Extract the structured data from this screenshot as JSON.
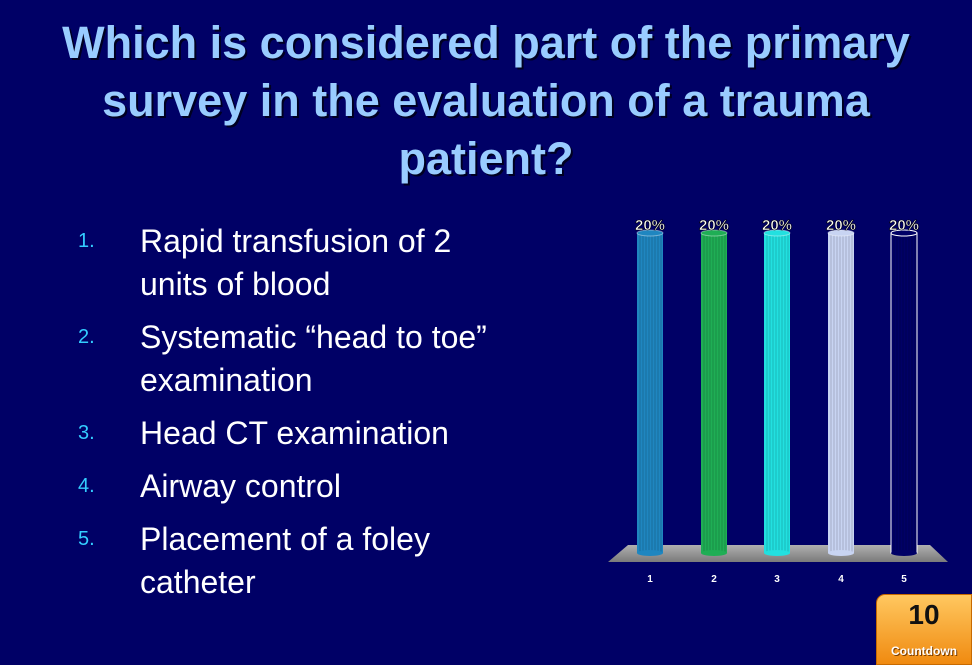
{
  "question": "Which is considered part of the primary survey in the evaluation of a trauma patient?",
  "options": [
    {
      "number": "1.",
      "text": "Rapid transfusion of 2 units of blood"
    },
    {
      "number": "2.",
      "text": "Systematic “head to toe” examination"
    },
    {
      "number": "3.",
      "text": "Head CT examination"
    },
    {
      "number": "4.",
      "text": "Airway control"
    },
    {
      "number": "5.",
      "text": "Placement of a foley catheter"
    }
  ],
  "countdown": {
    "value": "10",
    "label": "Countdown"
  },
  "chart_data": {
    "type": "bar",
    "categories": [
      "1",
      "2",
      "3",
      "4",
      "5"
    ],
    "values": [
      20,
      20,
      20,
      20,
      20
    ],
    "data_labels": [
      "20%",
      "20%",
      "20%",
      "20%",
      "20%"
    ],
    "ylim": [
      0,
      20
    ],
    "colors": [
      "#1f86c0",
      "#1fae55",
      "#22e0e0",
      "#c8d4f2",
      "#000066"
    ],
    "grid": false,
    "legend": "none"
  }
}
